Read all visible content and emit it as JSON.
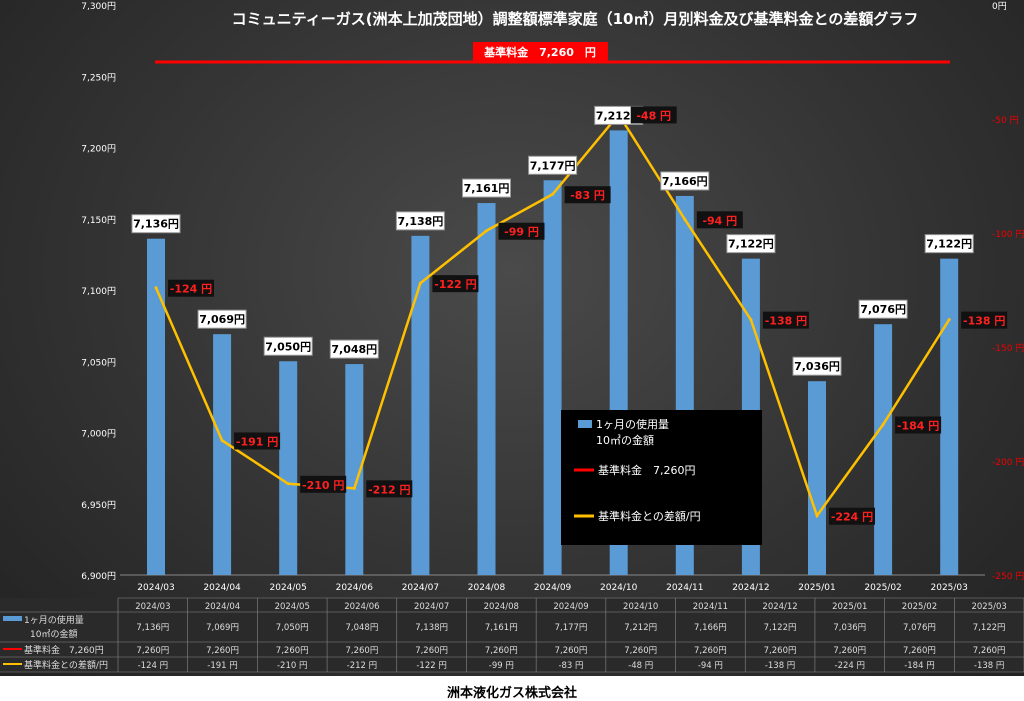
{
  "chart_data": {
    "type": "bar+line",
    "title": "コミュニティーガス(洲本上加茂団地）調整額標準家庭（10㎥）月別料金及び基準料金との差額グラフ",
    "categories": [
      "2024/03",
      "2024/04",
      "2024/05",
      "2024/06",
      "2024/07",
      "2024/08",
      "2024/09",
      "2024/10",
      "2024/11",
      "2024/12",
      "2025/01",
      "2025/02",
      "2025/03"
    ],
    "series": [
      {
        "name": "1ヶ月の使用量\n10㎥の金額",
        "type": "bar",
        "axis": "left",
        "color": "#5b9bd5",
        "values": [
          7136,
          7069,
          7050,
          7048,
          7138,
          7161,
          7177,
          7212,
          7166,
          7122,
          7036,
          7076,
          7122
        ],
        "labels": [
          "7,136円",
          "7,069円",
          "7,050円",
          "7,048円",
          "7,138円",
          "7,161円",
          "7,177円",
          "7,212円",
          "7,166円",
          "7,122円",
          "7,036円",
          "7,076円",
          "7,122円"
        ],
        "table": [
          "7,136円",
          "7,069円",
          "7,050円",
          "7,048円",
          "7,138円",
          "7,161円",
          "7,177円",
          "7,212円",
          "7,166円",
          "7,122円",
          "7,036円",
          "7,076円",
          "7,122円"
        ]
      },
      {
        "name": "基準料金　7,260円",
        "type": "line",
        "axis": "left",
        "color": "#ff0000",
        "values": [
          7260,
          7260,
          7260,
          7260,
          7260,
          7260,
          7260,
          7260,
          7260,
          7260,
          7260,
          7260,
          7260
        ],
        "table": [
          "7,260円",
          "7,260円",
          "7,260円",
          "7,260円",
          "7,260円",
          "7,260円",
          "7,260円",
          "7,260円",
          "7,260円",
          "7,260円",
          "7,260円",
          "7,260円",
          "7,260円"
        ]
      },
      {
        "name": "基準料金との差額/円",
        "type": "line",
        "axis": "right",
        "color": "#ffc000",
        "values": [
          -124,
          -191,
          -210,
          -212,
          -122,
          -99,
          -83,
          -48,
          -94,
          -138,
          -224,
          -184,
          -138
        ],
        "labels": [
          "-124 円",
          "-191 円",
          "-210 円",
          "-212 円",
          "-122 円",
          "-99 円",
          "-83 円",
          "-48 円",
          "-94 円",
          "-138 円",
          "-224 円",
          "-184 円",
          "-138 円"
        ],
        "table": [
          "-124 円",
          "-191 円",
          "-210 円",
          "-212 円",
          "-122 円",
          "-99 円",
          "-83 円",
          "-48 円",
          "-94 円",
          "-138 円",
          "-224 円",
          "-184 円",
          "-138 円"
        ]
      }
    ],
    "left_axis": {
      "range": [
        6900,
        7300
      ],
      "ticks": [
        "6,900円",
        "6,950円",
        "7,000円",
        "7,050円",
        "7,100円",
        "7,150円",
        "7,200円",
        "7,250円",
        "7,300円"
      ]
    },
    "right_axis": {
      "range": [
        -250,
        0
      ],
      "ticks": [
        "-250 円",
        "-200 円",
        "-150 円",
        "-100 円",
        "-50 円",
        "0円"
      ]
    },
    "base_annotation": "基準料金　7,260　円",
    "legend": {
      "placement": "center-right",
      "items": [
        "1ヶ月の使用量",
        "10㎥の金額",
        "基準料金　7,260円",
        "基準料金との差額/円"
      ]
    },
    "table_labels": [
      "1ヶ月の使用量",
      "10㎥の金額",
      "基準料金　7,260円",
      "基準料金との差額/円"
    ]
  },
  "footer": "洲本液化ガス株式会社"
}
